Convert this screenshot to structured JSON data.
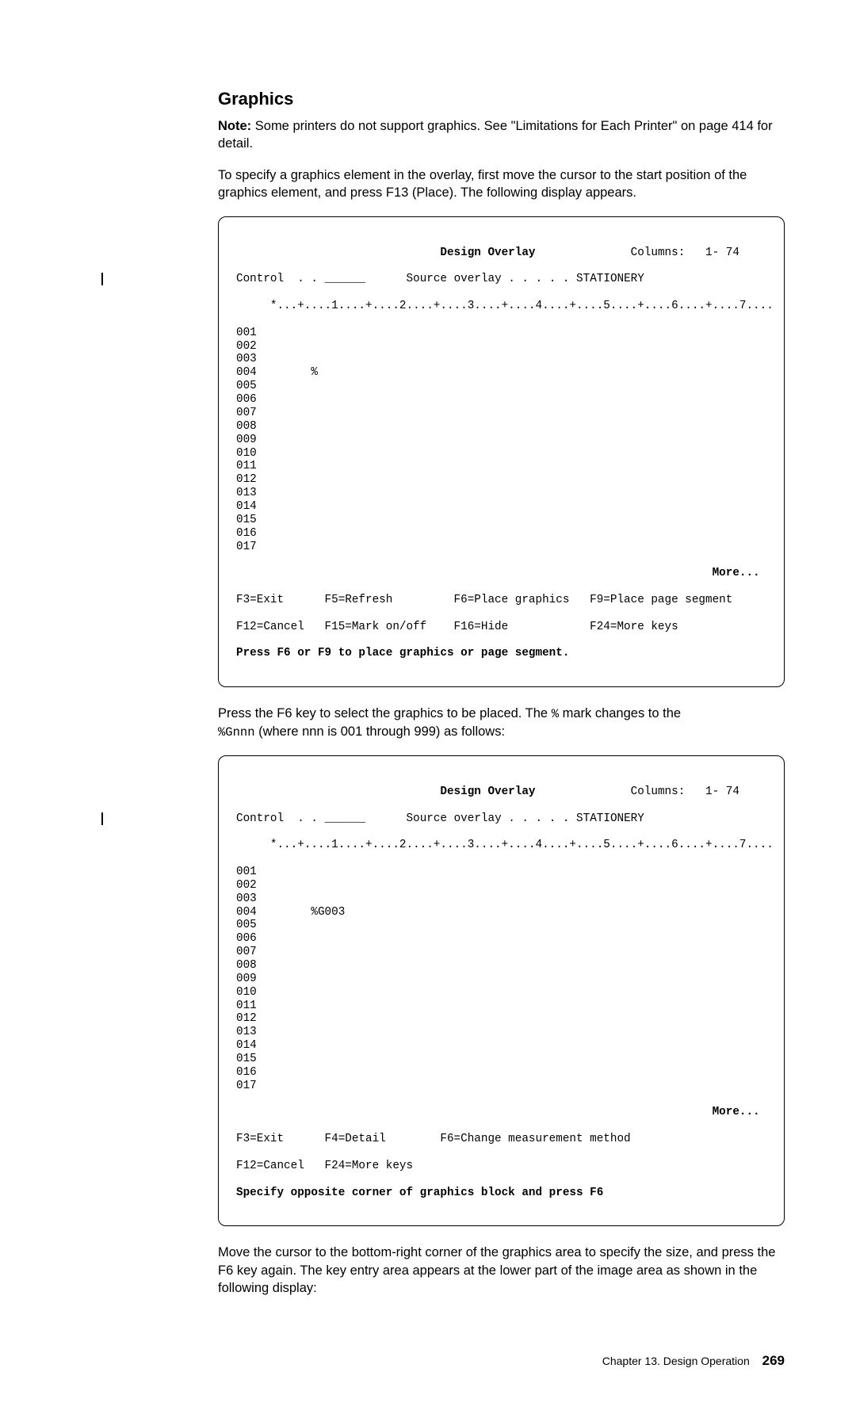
{
  "heading": "Graphics",
  "note_label": "Note:",
  "note_text": " Some printers do not support graphics.  See \"Limitations for Each Printer\" on page ",
  "note_pageref": "414",
  "note_tail": " for detail.",
  "para1": "To specify a graphics element in the overlay, first move the cursor to the start position of the graphics element, and press F13 (Place).  The following display appears.",
  "screen1": {
    "title": "Design Overlay",
    "columns_label": "Columns:",
    "columns_value": "1- 74",
    "control_label": "Control  . .",
    "control_blank": "______",
    "source_label": "Source overlay . . . . .",
    "source_value": "STATIONERY",
    "ruler": "     *...+....1....+....2....+....3....+....4....+....5....+....6....+....7....",
    "rows": [
      "001",
      "002",
      "003",
      "004        %",
      "005",
      "006",
      "007",
      "008",
      "009",
      "010",
      "011",
      "012",
      "013",
      "014",
      "015",
      "016",
      "017"
    ],
    "more": "More...",
    "fkeys_l1": "F3=Exit      F5=Refresh         F6=Place graphics   F9=Place page segment",
    "fkeys_l2": "F12=Cancel   F15=Mark on/off    F16=Hide            F24=More keys",
    "prompt": "Press F6 or F9 to place graphics or page segment."
  },
  "para2a": "Press the F6 key to select the graphics to be placed.  The ",
  "para2_mark": "%",
  "para2b": " mark changes to the ",
  "para2_code": "%Gnnn",
  "para2c": " (where nnn is 001 through 999) as follows:",
  "screen2": {
    "title": "Design Overlay",
    "columns_label": "Columns:",
    "columns_value": "1- 74",
    "control_label": "Control  . .",
    "control_blank": "______",
    "source_label": "Source overlay . . . . .",
    "source_value": "STATIONERY",
    "ruler": "     *...+....1....+....2....+....3....+....4....+....5....+....6....+....7....",
    "rows": [
      "001",
      "002",
      "003",
      "004        %G003",
      "005",
      "006",
      "007",
      "008",
      "009",
      "010",
      "011",
      "012",
      "013",
      "014",
      "015",
      "016",
      "017"
    ],
    "more": "More...",
    "fkeys_l1": "F3=Exit      F4=Detail        F6=Change measurement method",
    "fkeys_l2": "F12=Cancel   F24=More keys",
    "prompt": "Specify opposite corner of graphics block and press F6"
  },
  "para3": "Move the cursor to the bottom-right corner of the graphics area to specify the size, and press the F6 key again.  The key entry area appears at the lower part of the image area as shown in the following display:",
  "footer_chapter": "Chapter 13.  Design Operation",
  "footer_page": "269"
}
